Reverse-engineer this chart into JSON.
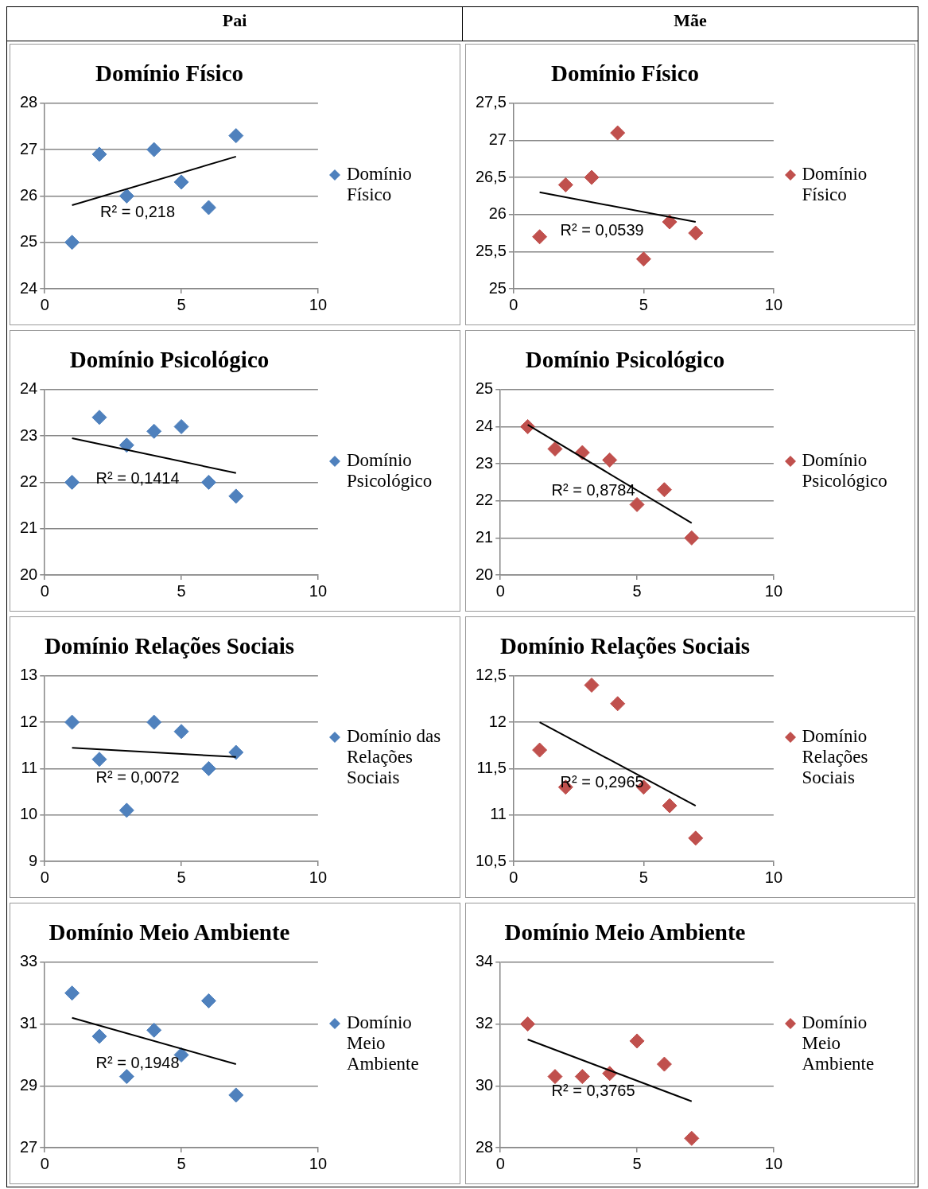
{
  "chart_data": [
    {
      "type": "scatter",
      "title": "Domínio Físico",
      "annotations": [
        "Pai",
        "R² = 0,218"
      ],
      "xlim": [
        0,
        10
      ],
      "xticks": [
        0,
        5,
        10
      ],
      "ylim": [
        24,
        28
      ],
      "yticks": [
        24,
        25,
        26,
        27,
        28
      ],
      "grid": "y",
      "legend": "right",
      "x": [
        1,
        2,
        3,
        4,
        5,
        6,
        7
      ],
      "series": [
        {
          "name": "Domínio Físico",
          "color": "#4f81bd",
          "marker": "diamond",
          "values": [
            25,
            26.9,
            26,
            27,
            26.3,
            25.75,
            27.3
          ]
        },
        {
          "type": "line",
          "color": "#000000",
          "values": [
            25.8,
            null,
            null,
            null,
            null,
            null,
            26.85
          ],
          "line_style": "solid"
        }
      ]
    },
    {
      "type": "scatter",
      "title": "Domínio Físico",
      "annotations": [
        "Mãe",
        "R² = 0,0539"
      ],
      "xlim": [
        0,
        10
      ],
      "xticks": [
        0,
        5,
        10
      ],
      "ylim": [
        25,
        27.5
      ],
      "yticks": [
        25,
        {
          "value": 25.5,
          "label": "25,5"
        },
        26,
        {
          "value": 26.5,
          "label": "26,5"
        },
        27,
        {
          "value": 27.5,
          "label": "27,5"
        }
      ],
      "grid": "y",
      "legend": "right",
      "x": [
        1,
        2,
        3,
        4,
        5,
        6,
        7
      ],
      "series": [
        {
          "name": "Domínio Físico",
          "color": "#c0504d",
          "marker": "diamond",
          "values": [
            25.7,
            26.4,
            26.5,
            27.1,
            25.4,
            25.9,
            25.75
          ]
        },
        {
          "type": "line",
          "color": "#000000",
          "values": [
            26.3,
            null,
            null,
            null,
            null,
            null,
            25.9
          ],
          "line_style": "solid"
        }
      ]
    },
    {
      "type": "scatter",
      "title": "Domínio Psicológico",
      "annotations": [
        "R² = 0,1414"
      ],
      "xlim": [
        0,
        10
      ],
      "xticks": [
        0,
        5,
        10
      ],
      "ylim": [
        20,
        24
      ],
      "yticks": [
        20,
        21,
        22,
        23,
        24
      ],
      "grid": "y",
      "legend": "right",
      "x": [
        1,
        2,
        3,
        4,
        5,
        6,
        7
      ],
      "series": [
        {
          "name": "Domínio Psicológico",
          "color": "#4f81bd",
          "marker": "diamond",
          "values": [
            22,
            23.4,
            22.8,
            23.1,
            23.2,
            22,
            21.7
          ]
        },
        {
          "type": "line",
          "color": "#000000",
          "values": [
            22.95,
            null,
            null,
            null,
            null,
            null,
            22.2
          ],
          "line_style": "solid"
        }
      ]
    },
    {
      "type": "scatter",
      "title": "Domínio Psicológico",
      "annotations": [
        "R² = 0,8784"
      ],
      "xlim": [
        0,
        10
      ],
      "xticks": [
        0,
        5,
        10
      ],
      "ylim": [
        20,
        25
      ],
      "yticks": [
        20,
        21,
        22,
        23,
        24,
        25
      ],
      "grid": "y",
      "legend": "right",
      "x": [
        1,
        2,
        3,
        4,
        5,
        6,
        7
      ],
      "series": [
        {
          "name": "Domínio Psicológico",
          "color": "#c0504d",
          "marker": "diamond",
          "values": [
            24,
            23.4,
            23.3,
            23.1,
            21.9,
            22.3,
            21
          ]
        },
        {
          "type": "line",
          "color": "#000000",
          "values": [
            24.05,
            null,
            null,
            null,
            null,
            null,
            21.4
          ],
          "line_style": "solid"
        }
      ]
    },
    {
      "type": "scatter",
      "title": "Domínio Relações Sociais",
      "annotations": [
        "R² = 0,0072"
      ],
      "xlim": [
        0,
        10
      ],
      "xticks": [
        0,
        5,
        10
      ],
      "ylim": [
        9,
        13
      ],
      "yticks": [
        9,
        10,
        11,
        12,
        13
      ],
      "grid": "y",
      "legend": "right",
      "x": [
        1,
        2,
        3,
        4,
        5,
        6,
        7
      ],
      "series": [
        {
          "name": "Domínio das Relações Sociais",
          "color": "#4f81bd",
          "marker": "diamond",
          "values": [
            12,
            11.2,
            10.1,
            12,
            11.8,
            11,
            11.35
          ]
        },
        {
          "type": "line",
          "color": "#000000",
          "values": [
            11.45,
            null,
            null,
            null,
            null,
            null,
            11.25
          ],
          "line_style": "solid"
        }
      ]
    },
    {
      "type": "scatter",
      "title": "Domínio Relações Sociais",
      "annotations": [
        "R² = 0,2965"
      ],
      "xlim": [
        0,
        10
      ],
      "xticks": [
        0,
        5,
        10
      ],
      "ylim": [
        10.5,
        12.5
      ],
      "yticks": [
        {
          "value": 10.5,
          "label": "10,5"
        },
        11,
        {
          "value": 11.5,
          "label": "11,5"
        },
        12,
        {
          "value": 12.5,
          "label": "12,5"
        }
      ],
      "grid": "y",
      "legend": "right",
      "x": [
        1,
        2,
        3,
        4,
        5,
        6,
        7
      ],
      "series": [
        {
          "name": "Domínio Relações Sociais",
          "color": "#c0504d",
          "marker": "diamond",
          "values": [
            11.7,
            11.3,
            12.4,
            12.2,
            11.3,
            11.1,
            10.75
          ]
        },
        {
          "type": "line",
          "color": "#000000",
          "values": [
            12,
            null,
            null,
            null,
            null,
            null,
            11.1
          ],
          "line_style": "solid"
        }
      ]
    },
    {
      "type": "scatter",
      "title": "Domínio Meio Ambiente",
      "annotations": [
        "R² = 0,1948"
      ],
      "xlim": [
        0,
        10
      ],
      "xticks": [
        0,
        5,
        10
      ],
      "ylim": [
        27,
        33
      ],
      "yticks": [
        27,
        29,
        31,
        33
      ],
      "grid": "y",
      "legend": "right",
      "x": [
        1,
        2,
        3,
        4,
        5,
        6,
        7
      ],
      "series": [
        {
          "name": "Domínio Meio Ambiente",
          "color": "#4f81bd",
          "marker": "diamond",
          "values": [
            32,
            30.6,
            29.3,
            30.8,
            30,
            31.75,
            28.7
          ]
        },
        {
          "type": "line",
          "color": "#000000",
          "values": [
            31.2,
            null,
            null,
            null,
            null,
            null,
            29.7
          ],
          "line_style": "solid"
        }
      ]
    },
    {
      "type": "scatter",
      "title": "Domínio Meio Ambiente",
      "annotations": [
        "R² = 0,3765"
      ],
      "xlim": [
        0,
        10
      ],
      "xticks": [
        0,
        5,
        10
      ],
      "ylim": [
        28,
        34
      ],
      "yticks": [
        28,
        30,
        32,
        34
      ],
      "grid": "y",
      "legend": "right",
      "x": [
        1,
        2,
        3,
        4,
        5,
        6,
        7
      ],
      "series": [
        {
          "name": "Domínio Meio Ambiente",
          "color": "#c0504d",
          "marker": "diamond",
          "values": [
            32,
            30.3,
            30.3,
            30.4,
            31.45,
            30.7,
            28.3
          ]
        },
        {
          "type": "line",
          "color": "#000000",
          "values": [
            31.5,
            null,
            null,
            null,
            null,
            null,
            29.5
          ],
          "line_style": "solid"
        }
      ]
    }
  ]
}
